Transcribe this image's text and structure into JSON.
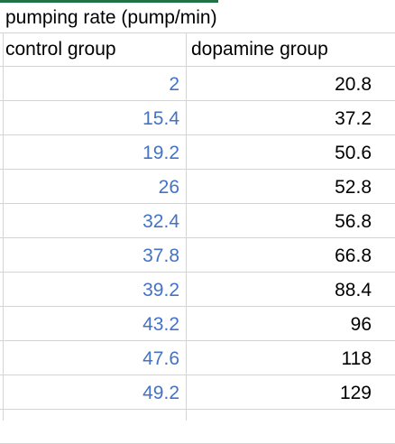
{
  "sheet": {
    "title": "pumping rate (pump/min)",
    "columns": [
      "control group",
      "dopamine group"
    ],
    "rows": [
      [
        "2",
        "20.8"
      ],
      [
        "15.4",
        "37.2"
      ],
      [
        "19.2",
        "50.6"
      ],
      [
        "26",
        "52.8"
      ],
      [
        "32.4",
        "56.8"
      ],
      [
        "37.8",
        "66.8"
      ],
      [
        "39.2",
        "88.4"
      ],
      [
        "43.2",
        "96"
      ],
      [
        "47.6",
        "118"
      ],
      [
        "49.2",
        "129"
      ]
    ]
  },
  "colors": {
    "control_text": "#4472c4",
    "dopamine_text": "#000000",
    "gridline": "#d4d4d4",
    "selection": "#1f7244"
  }
}
